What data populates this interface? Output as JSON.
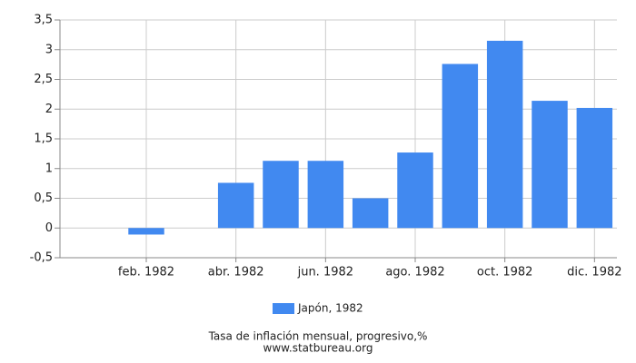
{
  "chart_data": {
    "type": "bar",
    "categories": [
      null,
      "feb. 1982",
      null,
      "abr. 1982",
      null,
      "jun. 1982",
      null,
      "ago. 1982",
      null,
      "oct. 1982",
      null,
      "dic. 1982"
    ],
    "series": [
      {
        "name": "Japón, 1982",
        "color": "#4189f0",
        "values": [
          0,
          -0.11,
          0,
          0.76,
          1.13,
          1.13,
          0.5,
          1.27,
          2.76,
          3.15,
          2.14,
          2.02
        ]
      }
    ],
    "ylim": [
      -0.5,
      3.5
    ],
    "yticks": [
      {
        "value": -0.5,
        "label": "-0,5"
      },
      0,
      {
        "value": 0.5,
        "label": "0,5"
      },
      1,
      {
        "value": 1.5,
        "label": "1,5"
      },
      2,
      {
        "value": 2.5,
        "label": "2,5"
      },
      3,
      {
        "value": 3.5,
        "label": "3,5"
      }
    ],
    "grid": true,
    "legend": "bottom",
    "title": "Tasa de inflación mensual, progresivo,%",
    "source": "www.statbureau.org"
  }
}
